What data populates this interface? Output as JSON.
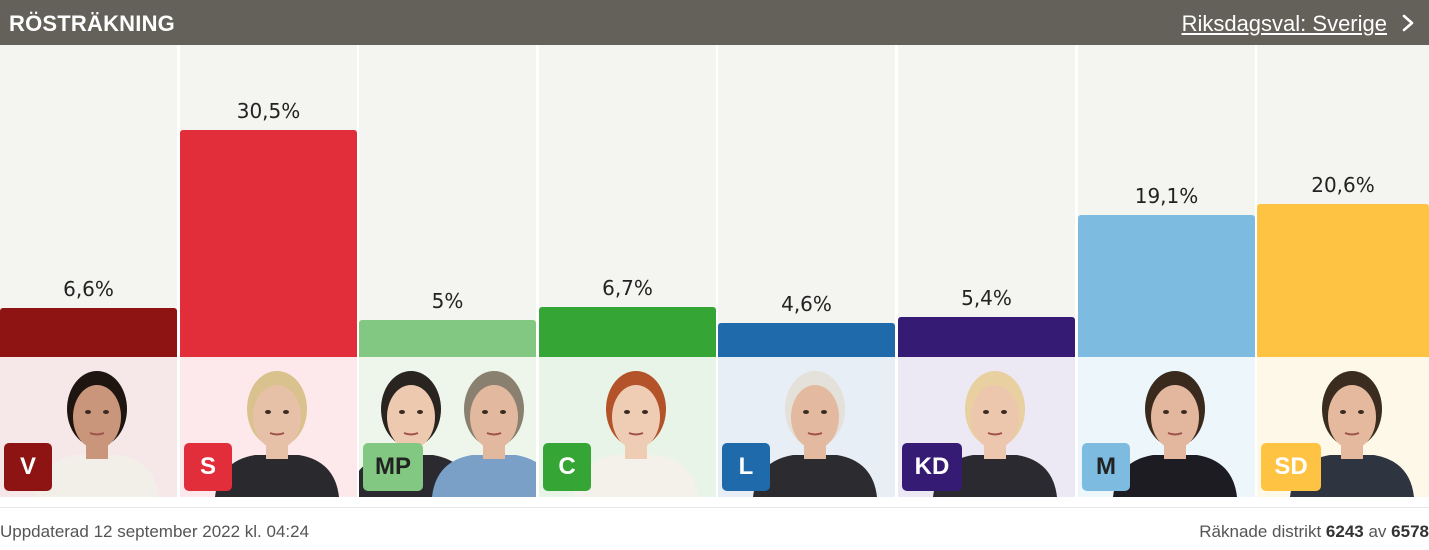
{
  "header": {
    "title": "RÖSTRÄKNING",
    "link": "Riksdagsval: Sverige",
    "link_icon": "chevron-right-icon"
  },
  "chart_data": {
    "type": "bar",
    "categories": [
      "V",
      "S",
      "MP",
      "C",
      "L",
      "KD",
      "M",
      "SD"
    ],
    "values": [
      6.6,
      30.5,
      5,
      6.7,
      4.6,
      5.4,
      19.1,
      20.6
    ],
    "value_labels": [
      "6,6%",
      "30,5%",
      "5%",
      "6,7%",
      "4,6%",
      "5,4%",
      "19,1%",
      "20,6%"
    ],
    "bar_colors": [
      "#8e1414",
      "#e22d3b",
      "#83c882",
      "#35a535",
      "#1e6aab",
      "#361b74",
      "#7dbce0",
      "#fec343"
    ],
    "badge_text_colors": [
      "#ffffff",
      "#ffffff",
      "#222222",
      "#ffffff",
      "#ffffff",
      "#ffffff",
      "#222222",
      "#ffffff"
    ],
    "portrait_backgrounds": [
      "#f6e8e8",
      "#fde9ec",
      "#eef6ec",
      "#e8f4e8",
      "#e8eef6",
      "#ece8f4",
      "#edf6fb",
      "#fdf8e8"
    ],
    "ylim": [
      0,
      35
    ],
    "xlabel": "",
    "ylabel": ""
  },
  "footer": {
    "updated": "Uppdaterad 12 september 2022 kl. 04:24",
    "counted_prefix": "Räknade distrikt",
    "counted_value": "6243",
    "counted_sep": "av",
    "counted_total": "6578"
  }
}
